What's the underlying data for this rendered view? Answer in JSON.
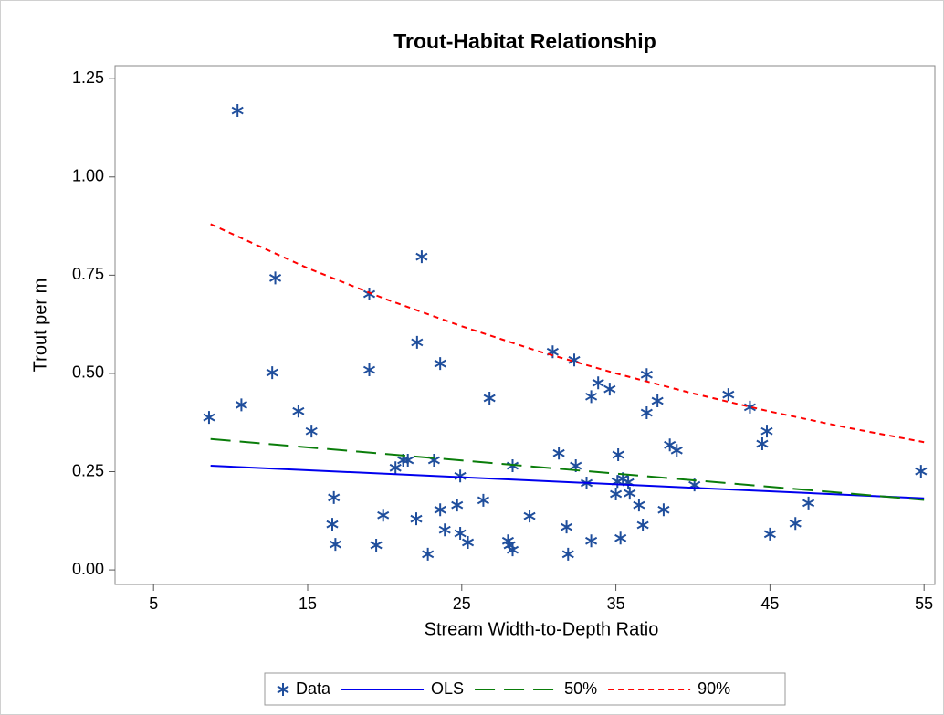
{
  "chart_data": {
    "type": "scatter-lines",
    "title": "Trout-Habitat Relationship",
    "x_label": "Stream Width-to-Depth Ratio",
    "y_label": "Trout per m",
    "xlim": [
      2.5,
      55.7
    ],
    "ylim": [
      -0.037,
      1.283
    ],
    "xticks": [
      5,
      15,
      25,
      35,
      45,
      55
    ],
    "yticks": [
      {
        "value": 0,
        "label": "0.00"
      },
      {
        "value": 0.25,
        "label": "0.25"
      },
      {
        "value": 0.5,
        "label": "0.50"
      },
      {
        "value": 0.75,
        "label": "0.75"
      },
      {
        "value": 1,
        "label": "1.00"
      },
      {
        "value": 1.25,
        "label": "1.25"
      }
    ],
    "legend": "bottom",
    "series": [
      {
        "name": "Data",
        "color": "#1f4e9c",
        "mark": "asterisk",
        "x": [
          8.6,
          10.45,
          10.7,
          12.9,
          12.7,
          14.4,
          15.25,
          16.7,
          16.6,
          16.8,
          19.0,
          19.0,
          19.9,
          19.45,
          20.7,
          21.2,
          21.5,
          22.4,
          22.1,
          22.05,
          23.2,
          23.6,
          23.6,
          23.9,
          22.8,
          24.7,
          24.9,
          24.9,
          25.4,
          26.4,
          26.8,
          28.0,
          28.1,
          28.3,
          28.3,
          29.4,
          30.9,
          31.3,
          31.8,
          31.9,
          32.3,
          32.4,
          33.1,
          33.4,
          33.4,
          33.85,
          34.6,
          35.1,
          35.15,
          35.0,
          35.3,
          35.45,
          35.8,
          35.9,
          36.5,
          36.75,
          37.0,
          37.0,
          37.7,
          38.1,
          38.5,
          38.95,
          40.1,
          42.3,
          43.7,
          44.5,
          44.8,
          45.0,
          46.65,
          47.5,
          54.8
        ],
        "values": [
          0.388,
          1.169,
          0.42,
          0.743,
          0.502,
          0.404,
          0.353,
          0.184,
          0.116,
          0.065,
          0.702,
          0.509,
          0.139,
          0.063,
          0.26,
          0.279,
          0.279,
          0.797,
          0.579,
          0.13,
          0.279,
          0.525,
          0.153,
          0.102,
          0.04,
          0.165,
          0.239,
          0.093,
          0.07,
          0.177,
          0.437,
          0.074,
          0.063,
          0.051,
          0.265,
          0.137,
          0.555,
          0.297,
          0.109,
          0.04,
          0.534,
          0.265,
          0.221,
          0.441,
          0.074,
          0.476,
          0.46,
          0.225,
          0.293,
          0.193,
          0.081,
          0.232,
          0.223,
          0.195,
          0.165,
          0.114,
          0.497,
          0.4,
          0.43,
          0.153,
          0.318,
          0.304,
          0.216,
          0.446,
          0.414,
          0.321,
          0.353,
          0.091,
          0.118,
          0.17,
          0.251
        ]
      },
      {
        "name": "OLS",
        "color": "#0000ee",
        "mark": "line",
        "dash": "solid",
        "x": [
          8.7,
          55
        ],
        "values": [
          0.265,
          0.182
        ]
      },
      {
        "name": "50%",
        "color": "#0a7d0a",
        "mark": "line",
        "dash": "long",
        "x": [
          8.7,
          55
        ],
        "values": [
          0.333,
          0.178
        ]
      },
      {
        "name": "90%",
        "color": "#ff0000",
        "mark": "line",
        "dash": "short",
        "x": [
          8.7,
          15,
          20,
          25,
          30,
          35,
          40,
          45,
          50,
          55
        ],
        "values": [
          0.88,
          0.768,
          0.69,
          0.62,
          0.556,
          0.5,
          0.449,
          0.403,
          0.362,
          0.325
        ]
      }
    ]
  }
}
